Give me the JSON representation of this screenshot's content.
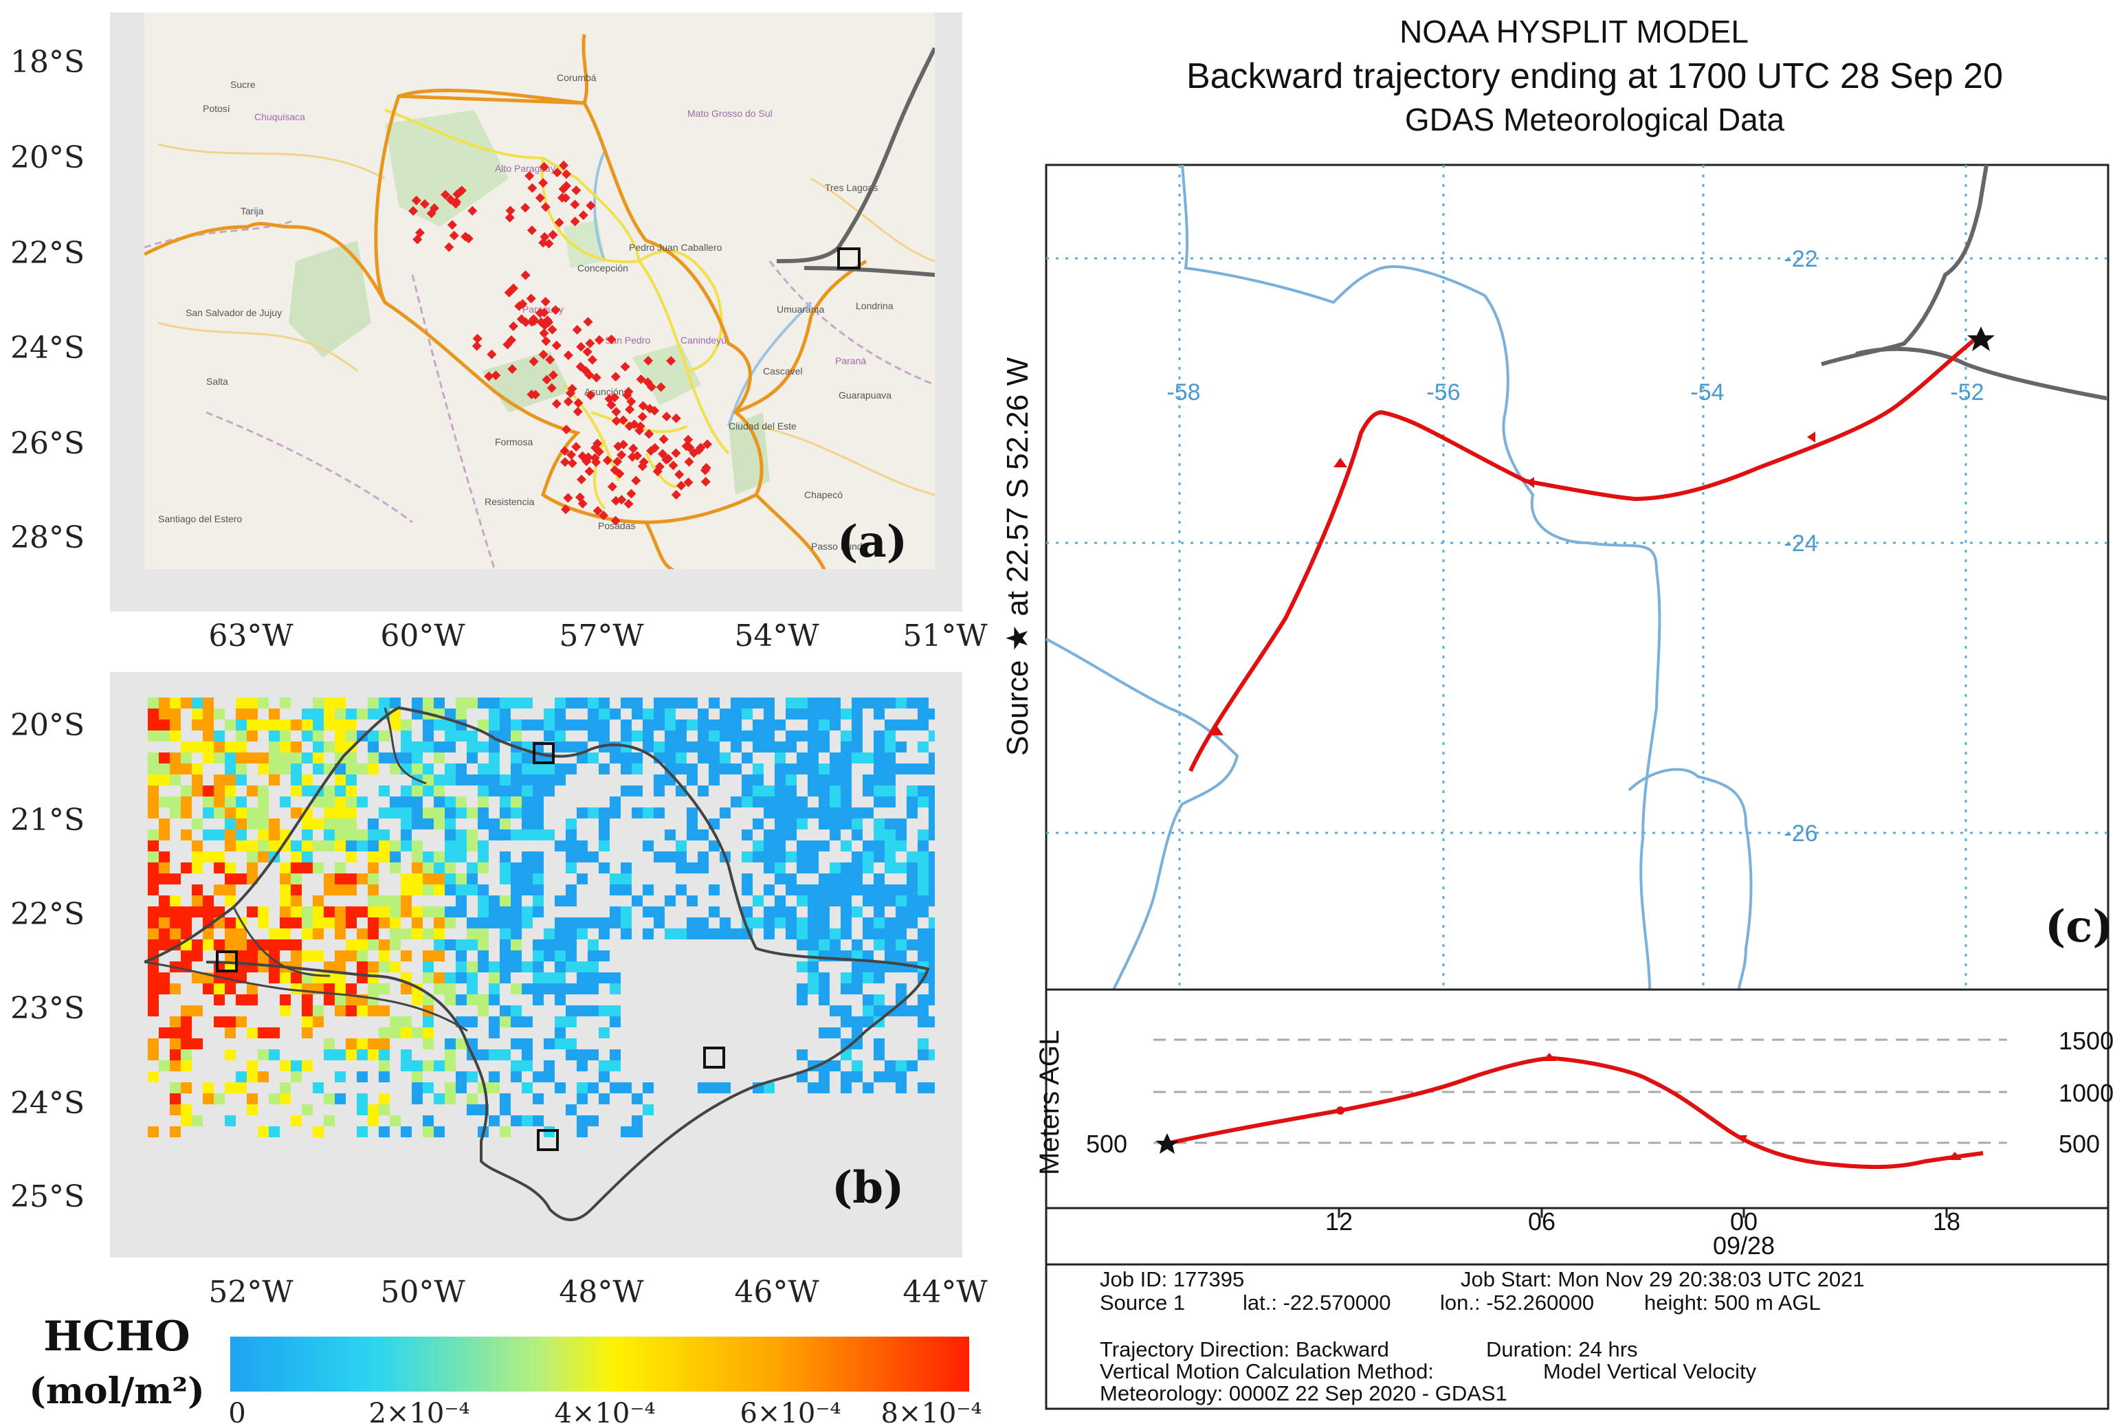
{
  "panel_a": {
    "label": "(a)",
    "lat_ticks": [
      "18°S",
      "20°S",
      "22°S",
      "24°S",
      "26°S",
      "28°S"
    ],
    "lon_ticks": [
      "63°W",
      "60°W",
      "57°W",
      "54°W",
      "51°W"
    ],
    "place_names": [
      "Sucre",
      "Potosí",
      "Chuquisaca",
      "Tarija",
      "San Salvador de Jujuy",
      "Salta",
      "Corumbá",
      "Mato Grosso do Sul",
      "Alto Paraguay",
      "Paraguay",
      "Concepción",
      "Pedro Juan Caballero",
      "San Pedro",
      "Canindeyú",
      "Asunción",
      "Formosa",
      "Ciudad del Este",
      "Resistencia",
      "Posadas",
      "Santiago del Estero",
      "Tres Lagoas",
      "Umuarama",
      "Londrina",
      "Cascavel",
      "Paraná",
      "Guarapuava",
      "Chapecó",
      "Passo Fundo"
    ]
  },
  "panel_b": {
    "label": "(b)",
    "lat_ticks": [
      "20°S",
      "21°S",
      "22°S",
      "23°S",
      "24°S",
      "25°S"
    ],
    "lon_ticks": [
      "52°W",
      "50°W",
      "48°W",
      "46°W",
      "44°W"
    ]
  },
  "colorbar": {
    "title_line1": "HCHO",
    "title_line2": "(mol/m²)",
    "tick_labels": [
      "0",
      "2×10⁻⁴",
      "4×10⁻⁴",
      "6×10⁻⁴",
      "8×10⁻⁴"
    ],
    "colors": [
      "#1fa3f0",
      "#2cd6f0",
      "#b8f07a",
      "#fff200",
      "#ffa000",
      "#ff2000"
    ]
  },
  "panel_c": {
    "label": "(c)",
    "title": "NOAA HYSPLIT MODEL",
    "subtitle": "Backward trajectory ending at 1700 UTC 28 Sep 20",
    "data_source": "GDAS Meteorological Data",
    "side_label": "Source ★ at 22.57 S 52.26 W",
    "lon_grid": [
      "-58",
      "-56",
      "-54",
      "-52"
    ],
    "lat_grid": [
      "-22",
      "-24",
      "-26"
    ],
    "height_axis_title": "Meters AGL",
    "height_ticks": [
      "1500",
      "1000",
      "500"
    ],
    "source_height": "500",
    "time_ticks": [
      "12",
      "06",
      "00",
      "18"
    ],
    "date_label": "09/28",
    "info": {
      "job_id": "Job ID: 177395",
      "job_start": "Job Start: Mon Nov 29 20:38:03 UTC 2021",
      "source": "Source 1",
      "lat": "lat.: -22.570000",
      "lon": "lon.: -52.260000",
      "height": "height: 500 m AGL",
      "direction": "Trajectory Direction: Backward",
      "duration": "Duration: 24 hrs",
      "vertical_method": "Vertical Motion Calculation Method:",
      "vertical_model": "Model Vertical Velocity",
      "meteorology": "Meteorology: 0000Z 22 Sep 2020 - GDAS1"
    },
    "trajectory_color": "#e01010"
  }
}
